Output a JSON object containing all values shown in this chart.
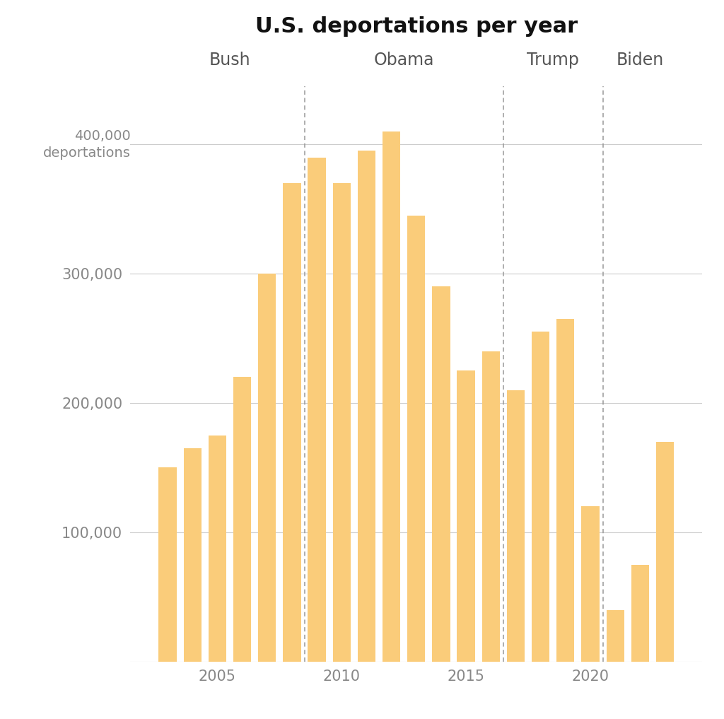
{
  "title": "U.S. deportations per year",
  "bar_color": "#FACC7A",
  "background_color": "#ffffff",
  "years": [
    2003,
    2004,
    2005,
    2006,
    2007,
    2008,
    2009,
    2010,
    2011,
    2012,
    2013,
    2014,
    2015,
    2016,
    2017,
    2018,
    2019,
    2020,
    2021,
    2022,
    2023
  ],
  "values": [
    150000,
    165000,
    175000,
    220000,
    300000,
    370000,
    390000,
    370000,
    395000,
    410000,
    345000,
    290000,
    225000,
    240000,
    210000,
    255000,
    265000,
    120000,
    40000,
    75000,
    170000
  ],
  "divider_years": [
    2008.5,
    2016.5,
    2020.5
  ],
  "yticks": [
    0,
    100000,
    200000,
    300000,
    400000
  ],
  "ylim": [
    0,
    445000
  ],
  "xlim": [
    2001.5,
    2024.5
  ],
  "xticks": [
    2005,
    2010,
    2015,
    2020
  ],
  "grid_color": "#cccccc",
  "axis_label_color": "#888888",
  "admin_label_color": "#555555",
  "divider_color": "#999999",
  "title_color": "#111111",
  "bar_width": 0.72
}
